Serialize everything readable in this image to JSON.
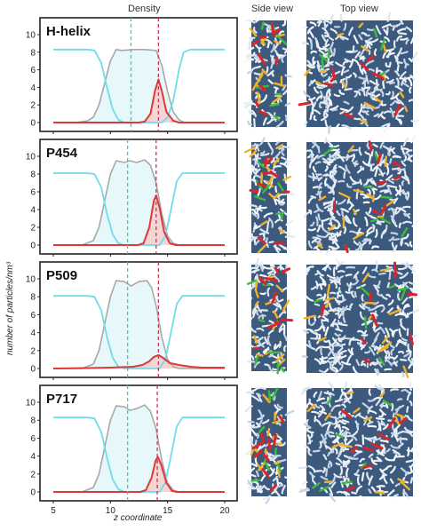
{
  "headers": {
    "density": "Density",
    "side_view": "Side view",
    "top_view": "Top view"
  },
  "y_axis_label": "number of particles/nm³",
  "x_axis_label": "z coordinate",
  "colors": {
    "gray": "#a8a8a8",
    "cyan": "#6fdcec",
    "cyan_fill": "#e4f7fb",
    "red": "#e03838",
    "red_fill": "#f6cccc",
    "cyan_dash": "#35c6dd",
    "red_dash": "#d2334d"
  },
  "chart_data": [
    {
      "type": "line",
      "title": "H-helix",
      "xlim": [
        5,
        20
      ],
      "ylim": [
        0,
        10.5
      ],
      "x_ticks": [
        5,
        10,
        15,
        20
      ],
      "y_ticks": [
        0,
        2,
        4,
        6,
        8,
        10
      ],
      "vlines": {
        "cyan": 11.8,
        "red": 14.2
      },
      "series": [
        {
          "color": "gray",
          "points": [
            [
              5,
              0
            ],
            [
              7,
              0
            ],
            [
              8,
              0.2
            ],
            [
              8.5,
              0.6
            ],
            [
              9,
              2
            ],
            [
              9.5,
              4.5
            ],
            [
              10,
              7
            ],
            [
              10.5,
              8.3
            ],
            [
              11,
              8.2
            ],
            [
              12,
              8.3
            ],
            [
              13,
              8.3
            ],
            [
              14,
              8.2
            ],
            [
              14.5,
              6.5
            ],
            [
              15,
              3.5
            ],
            [
              15.5,
              1.2
            ],
            [
              16,
              0.3
            ],
            [
              16.5,
              0
            ],
            [
              20,
              0
            ]
          ]
        },
        {
          "color": "cyan",
          "points": [
            [
              5,
              8.3
            ],
            [
              8,
              8.3
            ],
            [
              8.6,
              8.2
            ],
            [
              9.2,
              6.8
            ],
            [
              9.7,
              4
            ],
            [
              10.2,
              1.5
            ],
            [
              10.7,
              0.3
            ],
            [
              11.2,
              0
            ],
            [
              14.5,
              0
            ],
            [
              15,
              0.6
            ],
            [
              15.5,
              2.5
            ],
            [
              16,
              6
            ],
            [
              16.4,
              8
            ],
            [
              17,
              8.3
            ],
            [
              20,
              8.3
            ]
          ]
        },
        {
          "color": "red",
          "points": [
            [
              5,
              0
            ],
            [
              12.5,
              0
            ],
            [
              13,
              0.1
            ],
            [
              13.5,
              1
            ],
            [
              13.9,
              3.6
            ],
            [
              14.2,
              4.9
            ],
            [
              14.5,
              3.6
            ],
            [
              14.9,
              1.2
            ],
            [
              15.5,
              0.2
            ],
            [
              16,
              0
            ],
            [
              20,
              0
            ]
          ]
        }
      ]
    },
    {
      "type": "line",
      "title": "P454",
      "xlim": [
        5,
        20
      ],
      "ylim": [
        0,
        10.5
      ],
      "x_ticks": [
        5,
        10,
        15,
        20
      ],
      "y_ticks": [
        0,
        2,
        4,
        6,
        8,
        10
      ],
      "vlines": {
        "cyan": 11.5,
        "red": 14.0
      },
      "series": [
        {
          "color": "gray",
          "points": [
            [
              5,
              0
            ],
            [
              7.5,
              0
            ],
            [
              8.5,
              0.5
            ],
            [
              9,
              2
            ],
            [
              9.5,
              5
            ],
            [
              10,
              8
            ],
            [
              10.5,
              9.5
            ],
            [
              11.2,
              9.3
            ],
            [
              11.7,
              9.5
            ],
            [
              12.3,
              9.3
            ],
            [
              13,
              9.6
            ],
            [
              13.5,
              9
            ],
            [
              14,
              7
            ],
            [
              14.5,
              3.5
            ],
            [
              15,
              1
            ],
            [
              15.5,
              0.2
            ],
            [
              16,
              0
            ],
            [
              20,
              0
            ]
          ]
        },
        {
          "color": "cyan",
          "points": [
            [
              5,
              8.1
            ],
            [
              8,
              8.1
            ],
            [
              8.6,
              8
            ],
            [
              9.2,
              6.5
            ],
            [
              9.7,
              3.5
            ],
            [
              10.2,
              1.2
            ],
            [
              10.7,
              0.2
            ],
            [
              11.2,
              0
            ],
            [
              14.3,
              0
            ],
            [
              14.8,
              1
            ],
            [
              15.3,
              4
            ],
            [
              15.8,
              7.2
            ],
            [
              16.3,
              8.1
            ],
            [
              20,
              8.1
            ]
          ]
        },
        {
          "color": "red",
          "points": [
            [
              5,
              0
            ],
            [
              12.4,
              0
            ],
            [
              12.9,
              0.2
            ],
            [
              13.4,
              2
            ],
            [
              13.8,
              5
            ],
            [
              14.0,
              5.6
            ],
            [
              14.3,
              4.2
            ],
            [
              14.7,
              1.5
            ],
            [
              15.2,
              0.2
            ],
            [
              15.7,
              0
            ],
            [
              20,
              0
            ]
          ]
        }
      ]
    },
    {
      "type": "line",
      "title": "P509",
      "xlim": [
        5,
        20
      ],
      "ylim": [
        0,
        10.5
      ],
      "x_ticks": [
        5,
        10,
        15,
        20
      ],
      "y_ticks": [
        0,
        2,
        4,
        6,
        8,
        10
      ],
      "vlines": {
        "cyan": 11.5,
        "red": 14.2
      },
      "series": [
        {
          "color": "gray",
          "points": [
            [
              5,
              0
            ],
            [
              7.5,
              0
            ],
            [
              8.5,
              0.5
            ],
            [
              9,
              2
            ],
            [
              9.5,
              5
            ],
            [
              10,
              8
            ],
            [
              10.5,
              9.8
            ],
            [
              11.2,
              9.7
            ],
            [
              11.8,
              9.2
            ],
            [
              12.5,
              9.7
            ],
            [
              13.2,
              9.8
            ],
            [
              13.6,
              9
            ],
            [
              14,
              7
            ],
            [
              14.5,
              3.5
            ],
            [
              15,
              1
            ],
            [
              15.5,
              0.2
            ],
            [
              16,
              0
            ],
            [
              20,
              0
            ]
          ]
        },
        {
          "color": "cyan",
          "points": [
            [
              5,
              8.1
            ],
            [
              8,
              8.1
            ],
            [
              8.6,
              8
            ],
            [
              9.2,
              6.5
            ],
            [
              9.7,
              3.5
            ],
            [
              10.2,
              1.2
            ],
            [
              10.7,
              0.2
            ],
            [
              11.2,
              0
            ],
            [
              14.3,
              0
            ],
            [
              14.8,
              1
            ],
            [
              15.3,
              4
            ],
            [
              15.8,
              7.2
            ],
            [
              16.3,
              8.1
            ],
            [
              20,
              8.1
            ]
          ]
        },
        {
          "color": "red",
          "points": [
            [
              5,
              0
            ],
            [
              8,
              0.05
            ],
            [
              10,
              0.1
            ],
            [
              12,
              0.2
            ],
            [
              12.8,
              0.4
            ],
            [
              13.4,
              0.8
            ],
            [
              13.8,
              1.3
            ],
            [
              14.2,
              1.5
            ],
            [
              14.6,
              1.2
            ],
            [
              15.2,
              0.6
            ],
            [
              16,
              0.4
            ],
            [
              17,
              0.2
            ],
            [
              18,
              0.1
            ],
            [
              20,
              0.1
            ]
          ]
        }
      ]
    },
    {
      "type": "line",
      "title": "P717",
      "xlim": [
        5,
        20
      ],
      "ylim": [
        0,
        10.5
      ],
      "x_ticks": [
        5,
        10,
        15,
        20
      ],
      "y_ticks": [
        0,
        2,
        4,
        6,
        8,
        10
      ],
      "vlines": {
        "cyan": 11.5,
        "red": 14.1
      },
      "series": [
        {
          "color": "gray",
          "points": [
            [
              5,
              0
            ],
            [
              7.5,
              0
            ],
            [
              8.5,
              0.5
            ],
            [
              9,
              2
            ],
            [
              9.5,
              5
            ],
            [
              10,
              8
            ],
            [
              10.5,
              9.6
            ],
            [
              11.2,
              9.5
            ],
            [
              11.7,
              9.1
            ],
            [
              12.3,
              9.3
            ],
            [
              13,
              9.7
            ],
            [
              13.5,
              9
            ],
            [
              14,
              7
            ],
            [
              14.5,
              3.5
            ],
            [
              15,
              1
            ],
            [
              15.5,
              0.2
            ],
            [
              16,
              0
            ],
            [
              20,
              0
            ]
          ]
        },
        {
          "color": "cyan",
          "points": [
            [
              5,
              8.3
            ],
            [
              8,
              8.3
            ],
            [
              8.6,
              8.2
            ],
            [
              9.2,
              6.7
            ],
            [
              9.7,
              3.8
            ],
            [
              10.2,
              1.4
            ],
            [
              10.7,
              0.3
            ],
            [
              11.2,
              0
            ],
            [
              14.3,
              0
            ],
            [
              14.8,
              1
            ],
            [
              15.3,
              4
            ],
            [
              15.8,
              7.3
            ],
            [
              16.3,
              8.3
            ],
            [
              20,
              8.3
            ]
          ]
        },
        {
          "color": "red",
          "points": [
            [
              5,
              0
            ],
            [
              12.6,
              0
            ],
            [
              13.1,
              0.2
            ],
            [
              13.6,
              1.6
            ],
            [
              13.95,
              3.5
            ],
            [
              14.15,
              3.9
            ],
            [
              14.45,
              3
            ],
            [
              14.9,
              1
            ],
            [
              15.4,
              0.1
            ],
            [
              15.8,
              0
            ],
            [
              20,
              0
            ]
          ]
        }
      ]
    }
  ]
}
